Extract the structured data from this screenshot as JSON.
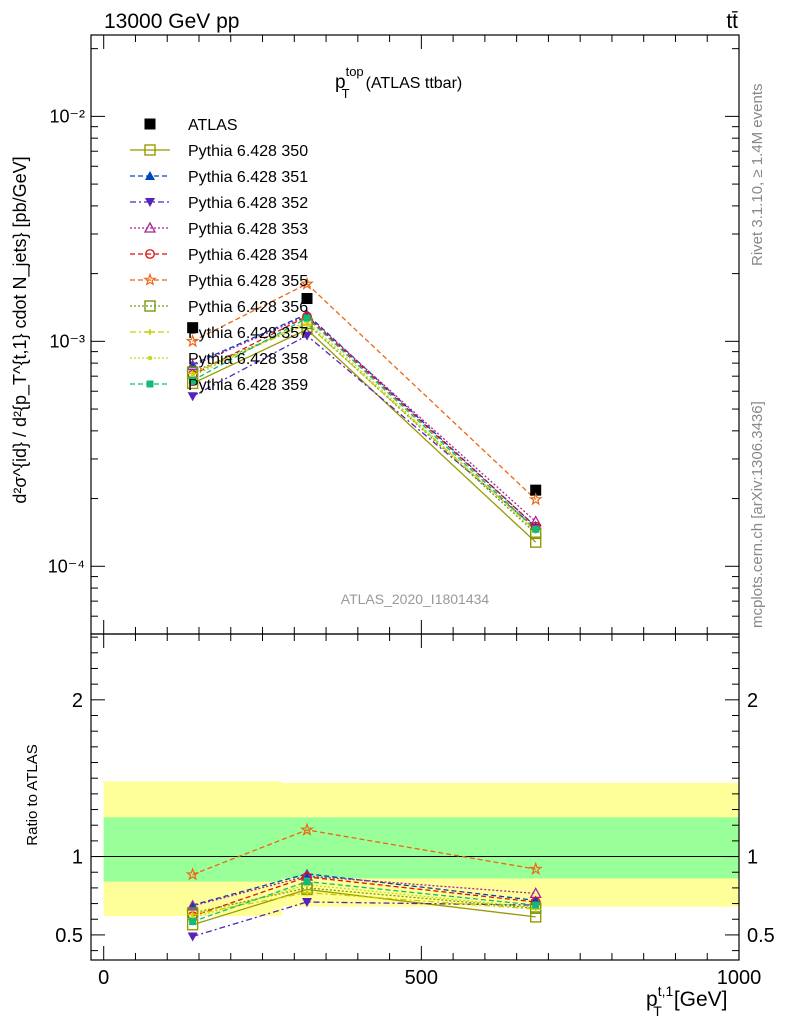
{
  "header": {
    "energy_label": "13000 GeV pp",
    "process_label": "tt̄"
  },
  "side_labels": {
    "rivet": "Rivet 3.1.10, ≥ 1.4M events",
    "source": "mcplots.cern.ch [arXiv:1306.3436]"
  },
  "colors": {
    "data": "#000000",
    "band_inner": "#99ff99",
    "band_outer": "#ffff99"
  },
  "chart_data": [
    {
      "type": "line",
      "panel": "main",
      "title": "p_T^top (ATLAS ttbar)",
      "title_main": "p",
      "title_sub": "T",
      "title_sup": "top",
      "title_rest": "(ATLAS ttbar)",
      "analysis_label": "ATLAS_2020_I1801434",
      "ylabel": "d²σ^{id} / d²{p_T^{t,1} cdot N_jets} [pb/GeV]",
      "yscale": "log",
      "ylim": [
        5e-05,
        0.023
      ],
      "xlim": [
        -20,
        1000
      ],
      "y_tick_labels": [
        "10⁻⁴",
        "10⁻³",
        "10⁻²"
      ],
      "x": [
        140,
        320,
        680
      ],
      "legend_position": "top-left",
      "series": [
        {
          "name": "ATLAS",
          "values": [
            0.00115,
            0.00155,
            0.000218
          ],
          "color": "#000000",
          "marker": "square-filled",
          "dash": "none",
          "is_data": true
        },
        {
          "name": "Pythia 6.428 350",
          "values": [
            0.00065,
            0.00113,
            0.000128
          ],
          "color": "#999900",
          "marker": "square-open",
          "dash": "solid"
        },
        {
          "name": "Pythia 6.428 351",
          "values": [
            0.00079,
            0.00132,
            0.00015
          ],
          "color": "#0044bb",
          "marker": "triangle-up-filled",
          "dash": "5,3"
        },
        {
          "name": "Pythia 6.428 352",
          "values": [
            0.00057,
            0.00106,
            0.000148
          ],
          "color": "#5522bb",
          "marker": "triangle-down-filled",
          "dash": "6,3,2,3"
        },
        {
          "name": "Pythia 6.428 353",
          "values": [
            0.00078,
            0.0013,
            0.000158
          ],
          "color": "#aa2299",
          "marker": "triangle-up-open",
          "dash": "2,2"
        },
        {
          "name": "Pythia 6.428 354",
          "values": [
            0.00071,
            0.00129,
            0.00015
          ],
          "color": "#dd1111",
          "marker": "circle-open",
          "dash": "5,3"
        },
        {
          "name": "Pythia 6.428 355",
          "values": [
            0.001,
            0.0018,
            0.000198
          ],
          "color": "#ee6611",
          "marker": "star-open",
          "dash": "5,3"
        },
        {
          "name": "Pythia 6.428 356",
          "values": [
            0.00073,
            0.0012,
            0.00014
          ],
          "color": "#779911",
          "marker": "square-open",
          "dash": "2,2"
        },
        {
          "name": "Pythia 6.428 357",
          "values": [
            0.00072,
            0.00119,
            0.000144
          ],
          "color": "#cccc00",
          "marker": "cross",
          "dash": "6,3,2,3"
        },
        {
          "name": "Pythia 6.428 358",
          "values": [
            0.0007,
            0.00123,
            0.000143
          ],
          "color": "#bbdd22",
          "marker": "dot",
          "dash": "2,2"
        },
        {
          "name": "Pythia 6.428 359",
          "values": [
            0.00067,
            0.00127,
            0.000146
          ],
          "color": "#11bb77",
          "marker": "square-filled-small",
          "dash": "5,3"
        }
      ]
    },
    {
      "type": "line",
      "panel": "ratio",
      "ylabel": "Ratio to ATLAS",
      "xlabel": "p_T^{t,1} [GeV]",
      "xlabel_main": "p",
      "xlabel_sub": "T",
      "xlabel_sup": "t,1",
      "xlabel_rest": "[GeV]",
      "ylim": [
        0.34,
        2.42
      ],
      "xlim": [
        -20,
        1000
      ],
      "x_ticks": [
        0,
        500,
        1000
      ],
      "x_tick_labels": [
        "0",
        "500",
        "1000"
      ],
      "y_ticks": [
        0.5,
        1,
        2
      ],
      "y_tick_labels": [
        "0.5",
        "1",
        "2"
      ],
      "x": [
        140,
        320,
        680
      ],
      "bands": {
        "edges": [
          0,
          280,
          1000
        ],
        "outer_low": [
          0.62,
          0.68
        ],
        "outer_high": [
          1.48,
          1.47
        ],
        "inner_low": [
          0.84,
          0.86
        ],
        "inner_high": [
          1.25,
          1.25
        ]
      },
      "series": [
        {
          "name": "Pythia 6.428 350",
          "values": [
            0.565,
            0.79,
            0.615
          ]
        },
        {
          "name": "Pythia 6.428 351",
          "values": [
            0.69,
            0.89,
            0.72
          ]
        },
        {
          "name": "Pythia 6.428 352",
          "values": [
            0.49,
            0.71,
            0.69
          ]
        },
        {
          "name": "Pythia 6.428 353",
          "values": [
            0.685,
            0.875,
            0.765
          ]
        },
        {
          "name": "Pythia 6.428 354",
          "values": [
            0.62,
            0.87,
            0.71
          ]
        },
        {
          "name": "Pythia 6.428 355",
          "values": [
            0.885,
            1.17,
            0.92
          ]
        },
        {
          "name": "Pythia 6.428 356",
          "values": [
            0.64,
            0.8,
            0.67
          ]
        },
        {
          "name": "Pythia 6.428 357",
          "values": [
            0.63,
            0.77,
            0.665
          ]
        },
        {
          "name": "Pythia 6.428 358",
          "values": [
            0.61,
            0.82,
            0.675
          ]
        },
        {
          "name": "Pythia 6.428 359",
          "values": [
            0.585,
            0.84,
            0.69
          ]
        }
      ]
    }
  ]
}
